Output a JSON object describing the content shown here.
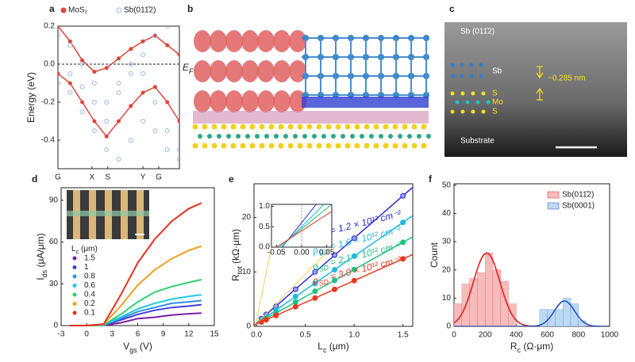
{
  "chart_data": [
    {
      "type": "band",
      "label": "a",
      "ylabel": "Energy (eV)",
      "annotation": {
        "main": "E",
        "sub": "F"
      },
      "fermi_level": 0,
      "x": [
        0,
        0.1,
        0.2,
        0.3,
        0.4,
        0.5,
        0.6,
        0.7,
        0.8,
        0.9,
        1
      ],
      "xlim": [
        0,
        1
      ],
      "ylim": [
        -0.55,
        0.2
      ],
      "xticks": [
        {
          "value": 0,
          "label": "G"
        },
        {
          "value": 0.28,
          "label": "X"
        },
        {
          "value": 0.41,
          "label": "S"
        },
        {
          "value": 0.7,
          "label": "Y"
        },
        {
          "value": 0.83,
          "label": "G"
        }
      ],
      "yticks": [
        0.2,
        {
          "value": 0,
          "label": "0.0"
        },
        -0.2,
        -0.4
      ],
      "series": [
        {
          "name": "MoS₂",
          "color": "#e0453a",
          "marker": "filled",
          "bands": [
            [
              0.2,
              0.12,
              0.02,
              -0.04,
              -0.02,
              0.03,
              0.08,
              0.12,
              0.15,
              0.1,
              0.05
            ],
            [
              -0.05,
              -0.1,
              -0.2,
              -0.3,
              -0.38,
              -0.3,
              -0.22,
              -0.15,
              -0.12,
              -0.2,
              -0.3
            ]
          ]
        },
        {
          "name": "Sb(011̄2)",
          "color": "#9fb6e0",
          "marker": "open",
          "bands": [
            [
              0.15,
              0.1,
              0,
              -0.1,
              -0.2,
              -0.15,
              -0.05,
              0.05,
              0.15,
              0.2,
              0.2
            ],
            [
              -0.1,
              -0.15,
              -0.25,
              -0.35,
              -0.45,
              -0.5,
              -0.4,
              -0.3,
              -0.35,
              -0.45,
              -0.5
            ],
            [
              0,
              -0.05,
              -0.12,
              -0.2,
              -0.3,
              -0.1,
              0,
              -0.05,
              -0.2,
              -0.35,
              -0.45
            ]
          ]
        }
      ]
    },
    {
      "type": "line",
      "label": "d",
      "xlabel": {
        "main": "V",
        "sub": "gs",
        "unit": " (V)"
      },
      "ylabel": {
        "main": "I",
        "sub": "ds",
        "unit": " (μA/μm)"
      },
      "legend_title": {
        "main": "L",
        "sub": "c",
        "unit": " (μm)"
      },
      "x": [
        -2,
        0,
        2,
        4,
        6,
        8,
        10,
        12,
        13.5
      ],
      "xlim": [
        -3,
        15
      ],
      "ylim": [
        0,
        99
      ],
      "xticks": [
        -3,
        0,
        3,
        6,
        9,
        12,
        15
      ],
      "yticks": [
        0,
        30,
        60,
        90
      ],
      "series": [
        {
          "name": "1.5",
          "color": "#7b1fa2",
          "values": [
            0,
            0,
            0.2,
            2,
            5,
            6,
            7.5,
            8.5,
            9
          ]
        },
        {
          "name": "1",
          "color": "#3f3fe0",
          "values": [
            0,
            0,
            0.3,
            4,
            8,
            11,
            13,
            14,
            15
          ]
        },
        {
          "name": "0.8",
          "color": "#2f8fe8",
          "values": [
            0,
            0,
            0.4,
            5,
            10,
            13,
            16,
            17,
            18
          ]
        },
        {
          "name": "0.6",
          "color": "#20c8e0",
          "values": [
            0,
            0,
            0.5,
            6,
            12,
            16,
            19,
            21,
            22
          ]
        },
        {
          "name": "0.4",
          "color": "#30d070",
          "values": [
            0,
            0,
            0.5,
            8,
            17,
            24,
            28,
            31,
            33
          ]
        },
        {
          "name": "0.2",
          "color": "#f0a020",
          "values": [
            0,
            0,
            1,
            14,
            29,
            40,
            48,
            54,
            57
          ]
        },
        {
          "name": "0.1",
          "color": "#e83020",
          "values": [
            0,
            0,
            1,
            22,
            45,
            62,
            75,
            84,
            88
          ]
        }
      ]
    },
    {
      "type": "scatter_fit",
      "label": "e",
      "xlabel": {
        "main": "L",
        "sub": "c",
        "unit": " (μm)"
      },
      "ylabel": {
        "main": "R",
        "sub": "tot",
        "unit": " (kΩ·μm)"
      },
      "x": [
        0.05,
        0.1,
        0.2,
        0.4,
        0.6,
        0.8,
        1.0,
        1.5
      ],
      "xlim": [
        -0.025,
        1.6
      ],
      "ylim": [
        0,
        26.2
      ],
      "xticks": [
        {
          "value": 0,
          "label": "0.0"
        },
        0.5,
        {
          "value": 1,
          "label": "1.0"
        },
        1.5
      ],
      "yticks": [
        0,
        10,
        20
      ],
      "inset": {
        "xlim": [
          -0.06,
          0.06
        ],
        "ylim": [
          0,
          1.05
        ],
        "xticks": [
          -0.05,
          {
            "value": 0,
            "label": "0.00"
          },
          0.05
        ],
        "yticks": [
          {
            "value": 0,
            "label": "0.0"
          },
          0.5,
          {
            "value": 1,
            "label": "1.0"
          }
        ]
      },
      "series": [
        {
          "color": "#2828d8",
          "values": [
            1.4,
            2.2,
            3.7,
            6.8,
            10.0,
            13.1,
            16.2,
            24.0
          ],
          "fit": {
            "slope": 15.6,
            "intercept": 0.6
          },
          "note": {
            "sym": "ρ",
            "sub": "SD",
            "rest": " = 1.2 × 10¹² cm⁻²"
          }
        },
        {
          "color": "#20b8e0",
          "values": [
            1.1,
            1.7,
            3.0,
            5.5,
            7.9,
            10.4,
            12.9,
            19.1
          ],
          "fit": {
            "slope": 12.4,
            "intercept": 0.5
          },
          "note": {
            "sym": "ρ",
            "sub": "SD",
            "rest": " = 1.6 × 10¹² cm⁻²"
          }
        },
        {
          "color": "#20c080",
          "values": [
            0.95,
            1.45,
            2.45,
            4.45,
            6.45,
            8.45,
            10.45,
            15.45
          ],
          "fit": {
            "slope": 10,
            "intercept": 0.45
          },
          "note": {
            "sym": "ρ",
            "sub": "SD",
            "rest": " = 2.1 × 10¹² cm⁻²"
          }
        },
        {
          "color": "#e83a20",
          "values": [
            0.8,
            1.2,
            2.0,
            3.6,
            5.2,
            6.8,
            8.4,
            12.4
          ],
          "fit": {
            "slope": 8,
            "intercept": 0.4
          },
          "note": {
            "sym": "ρ",
            "sub": "SD",
            "rest": " = 3.0 × 10¹² cm⁻²"
          }
        }
      ]
    },
    {
      "type": "histogram",
      "label": "f",
      "ylabel": "Count",
      "xlabel": {
        "main": "R",
        "sub": "c",
        "unit": " (Ω·μm)"
      },
      "xlim": [
        0,
        1000
      ],
      "ylim": [
        0,
        50.5
      ],
      "xticks": [
        0,
        200,
        400,
        600,
        800,
        1000
      ],
      "yticks": [
        0,
        10,
        20,
        30,
        40,
        50
      ],
      "legend": "upper right",
      "series": [
        {
          "name": "Sb(011̄2)",
          "color": "#f6bcbc",
          "fit_color": "#e02020",
          "bins": [
            0,
            50,
            100,
            150,
            200,
            250,
            300,
            350,
            400
          ],
          "counts": [
            8,
            15,
            17,
            19,
            26,
            20,
            16,
            8
          ],
          "fit": {
            "mean": 210,
            "sd": 85,
            "peak": 26
          }
        },
        {
          "name": "Sb(0001)",
          "color": "#bcd9f2",
          "fit_color": "#1f4fd0",
          "bins": [
            550,
            600,
            650,
            700,
            750,
            800,
            850
          ],
          "counts": [
            6,
            6,
            6,
            10,
            8,
            2
          ],
          "fit": {
            "mean": 710,
            "sd": 65,
            "peak": 9
          }
        }
      ]
    }
  ],
  "images": {
    "b": {
      "label": "b"
    },
    "c": {
      "label": "c",
      "title": "Sb (011̄2)",
      "sb": "Sb",
      "s1": "S",
      "mo": "Mo",
      "s2": "S",
      "spacing": "~0.285 nm",
      "substrate": "Substrate"
    }
  }
}
